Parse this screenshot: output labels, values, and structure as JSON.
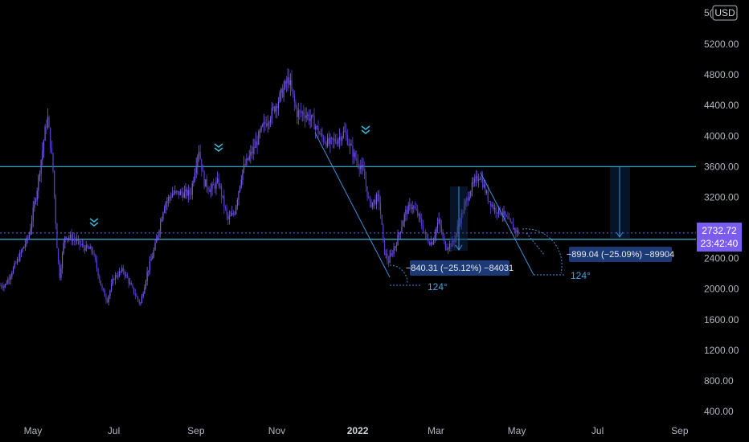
{
  "header": {
    "currency_badge": "USD",
    "top_tick_partial": "5("
  },
  "chart_data": {
    "type": "candlestick",
    "y_axis": {
      "range": [
        400,
        5700
      ],
      "ticks": [
        "5200.00",
        "4800.00",
        "4400.00",
        "4000.00",
        "3600.00",
        "3200.00",
        "2400.00",
        "2000.00",
        "1600.00",
        "1200.00",
        "800.00",
        "400.00"
      ],
      "tick_values": [
        5200,
        4800,
        4400,
        4000,
        3600,
        3200,
        2400,
        2000,
        1600,
        1200,
        800,
        400
      ]
    },
    "x_axis": {
      "ticks": [
        {
          "label": "May",
          "date": "2021-05-01"
        },
        {
          "label": "Jul",
          "date": "2021-07-01"
        },
        {
          "label": "Sep",
          "date": "2021-09-01"
        },
        {
          "label": "Nov",
          "date": "2021-11-01"
        },
        {
          "label": "2022",
          "date": "2022-01-01",
          "bold": true
        },
        {
          "label": "Mar",
          "date": "2022-03-01"
        },
        {
          "label": "May",
          "date": "2022-05-01"
        },
        {
          "label": "Jul",
          "date": "2022-07-01"
        },
        {
          "label": "Sep",
          "date": "2022-09-01"
        }
      ]
    },
    "price_path": [
      [
        "2021-04-10",
        2050
      ],
      [
        "2021-04-20",
        2400
      ],
      [
        "2021-04-28",
        2700
      ],
      [
        "2021-05-04",
        3300
      ],
      [
        "2021-05-10",
        4050
      ],
      [
        "2021-05-12",
        4250
      ],
      [
        "2021-05-16",
        3600
      ],
      [
        "2021-05-19",
        2600
      ],
      [
        "2021-05-21",
        2150
      ],
      [
        "2021-05-25",
        2700
      ],
      [
        "2021-06-01",
        2650
      ],
      [
        "2021-06-08",
        2550
      ],
      [
        "2021-06-15",
        2500
      ],
      [
        "2021-06-22",
        2000
      ],
      [
        "2021-06-26",
        1850
      ],
      [
        "2021-07-01",
        2150
      ],
      [
        "2021-07-08",
        2250
      ],
      [
        "2021-07-15",
        2000
      ],
      [
        "2021-07-21",
        1800
      ],
      [
        "2021-07-26",
        2200
      ],
      [
        "2021-08-01",
        2550
      ],
      [
        "2021-08-08",
        3100
      ],
      [
        "2021-08-14",
        3250
      ],
      [
        "2021-08-20",
        3250
      ],
      [
        "2021-08-28",
        3250
      ],
      [
        "2021-09-03",
        3850
      ],
      [
        "2021-09-07",
        3400
      ],
      [
        "2021-09-12",
        3300
      ],
      [
        "2021-09-18",
        3400
      ],
      [
        "2021-09-25",
        2900
      ],
      [
        "2021-09-30",
        3000
      ],
      [
        "2021-10-06",
        3550
      ],
      [
        "2021-10-15",
        3850
      ],
      [
        "2021-10-21",
        4100
      ],
      [
        "2021-10-28",
        4300
      ],
      [
        "2021-11-03",
        4500
      ],
      [
        "2021-11-10",
        4750
      ],
      [
        "2021-11-16",
        4300
      ],
      [
        "2021-11-22",
        4300
      ],
      [
        "2021-11-28",
        4200
      ],
      [
        "2021-12-04",
        4000
      ],
      [
        "2021-12-10",
        3900
      ],
      [
        "2021-12-16",
        3950
      ],
      [
        "2021-12-22",
        4050
      ],
      [
        "2021-12-29",
        3750
      ],
      [
        "2022-01-05",
        3550
      ],
      [
        "2022-01-10",
        3100
      ],
      [
        "2022-01-17",
        3200
      ],
      [
        "2022-01-21",
        2500
      ],
      [
        "2022-01-24",
        2350
      ],
      [
        "2022-01-30",
        2600
      ],
      [
        "2022-02-06",
        3000
      ],
      [
        "2022-02-11",
        3100
      ],
      [
        "2022-02-16",
        2950
      ],
      [
        "2022-02-22",
        2650
      ],
      [
        "2022-02-26",
        2600
      ],
      [
        "2022-03-03",
        2900
      ],
      [
        "2022-03-08",
        2550
      ],
      [
        "2022-03-14",
        2600
      ],
      [
        "2022-03-20",
        2950
      ],
      [
        "2022-03-27",
        3300
      ],
      [
        "2022-04-03",
        3500
      ],
      [
        "2022-04-09",
        3200
      ],
      [
        "2022-04-14",
        3050
      ],
      [
        "2022-04-20",
        3000
      ],
      [
        "2022-04-26",
        2850
      ],
      [
        "2022-05-01",
        2750
      ],
      [
        "2022-05-03",
        2733
      ]
    ],
    "horizontal_levels": [
      3600,
      2650
    ],
    "last_price_line": 2733,
    "annotations": [
      {
        "label": "−840.31 (−25.12%) −84031",
        "angle": "124°"
      },
      {
        "label": "−899.04 (−25.09%) −89904",
        "angle": "124°"
      }
    ],
    "price_tag": {
      "price": "2732.72",
      "countdown": "23:42:40"
    }
  },
  "colors": {
    "background": "#000000",
    "candle": "#7b5cf0",
    "candle_dark": "#5a3fd0",
    "level_line": "#3fb6d6",
    "drawing": "#3d8fd8",
    "last_price": "#7b5cf0",
    "axis_text": "#b2b5be"
  }
}
